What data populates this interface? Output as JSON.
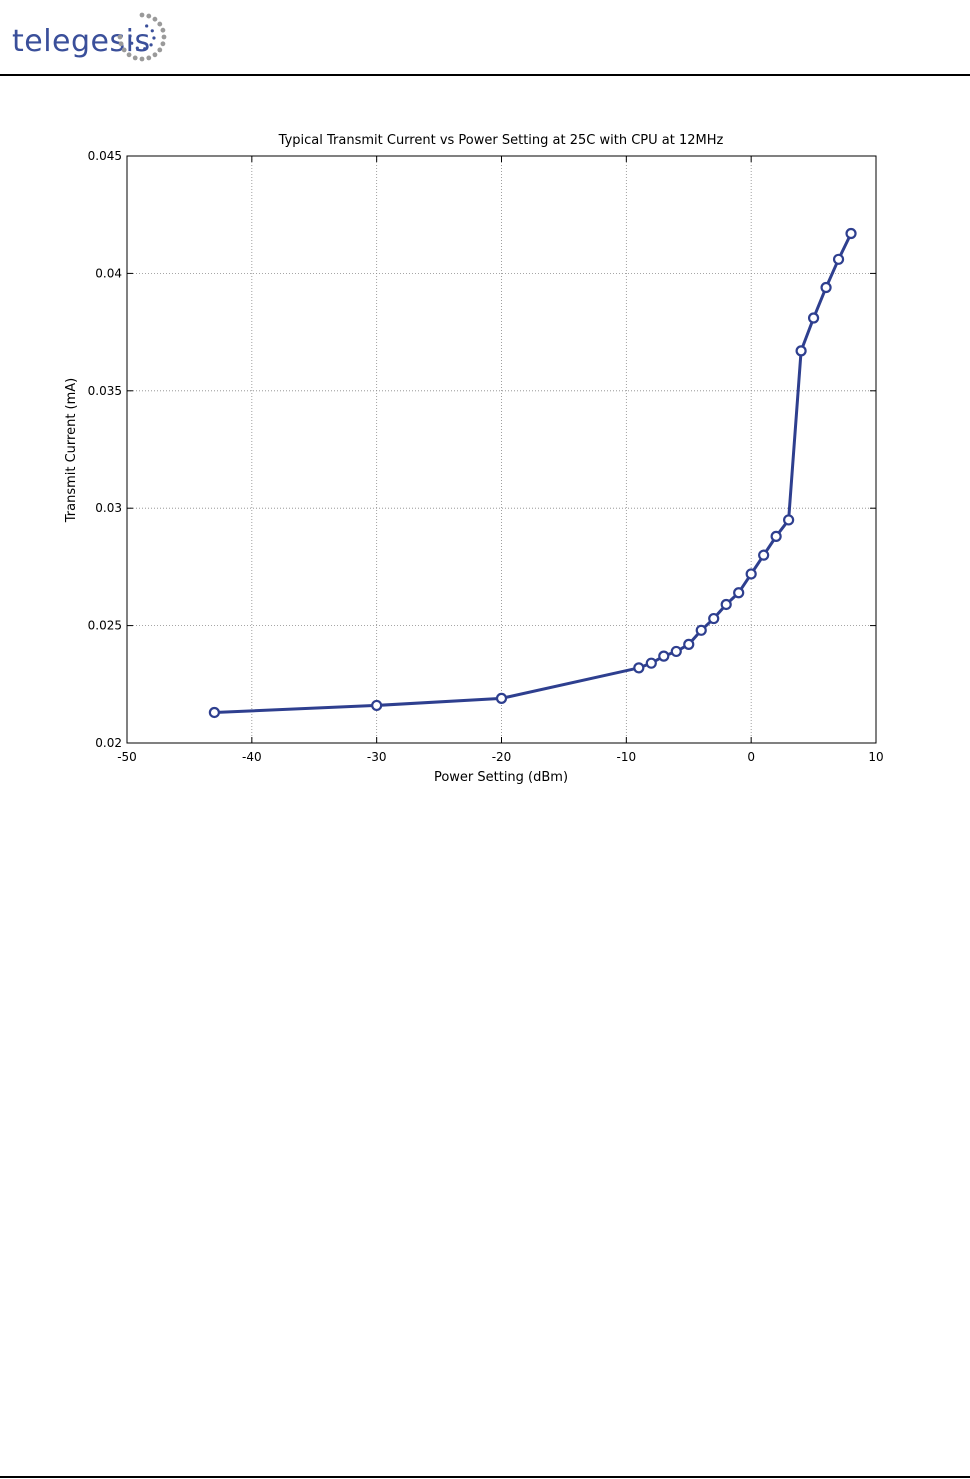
{
  "header": {
    "logo_text": "telegesis",
    "logo_icon": "swirl-dots-logo",
    "brand_color": "#3a4f9a"
  },
  "chart_data": {
    "type": "line",
    "title": "Typical Transmit Current vs Power Setting at 25C with CPU at 12MHz",
    "xlabel": "Power Setting (dBm)",
    "ylabel": "Transmit Current (mA)",
    "xlim": [
      -50,
      10
    ],
    "ylim": [
      0.02,
      0.045
    ],
    "xticks": [
      -50,
      -40,
      -30,
      -20,
      -10,
      0,
      10
    ],
    "xtick_labels": [
      "-50",
      "-40",
      "-30",
      "-20",
      "-10",
      "0",
      "10"
    ],
    "yticks": [
      0.02,
      0.025,
      0.03,
      0.035,
      0.04,
      0.045
    ],
    "ytick_labels": [
      "0.02",
      "0.025",
      "0.03",
      "0.035",
      "0.04",
      "0.045"
    ],
    "grid": true,
    "line_color": "#2e3f8f",
    "marker": "circle",
    "x": [
      -43,
      -30,
      -20,
      -9,
      -8,
      -7,
      -6,
      -5,
      -4,
      -3,
      -2,
      -1,
      0,
      1,
      2,
      3,
      4,
      5,
      6,
      7,
      8
    ],
    "y": [
      0.0213,
      0.0216,
      0.0219,
      0.0232,
      0.0234,
      0.0237,
      0.0239,
      0.0242,
      0.0248,
      0.0253,
      0.0259,
      0.0264,
      0.0272,
      0.028,
      0.0288,
      0.0295,
      0.0367,
      0.0381,
      0.0394,
      0.0406,
      0.0417
    ]
  }
}
